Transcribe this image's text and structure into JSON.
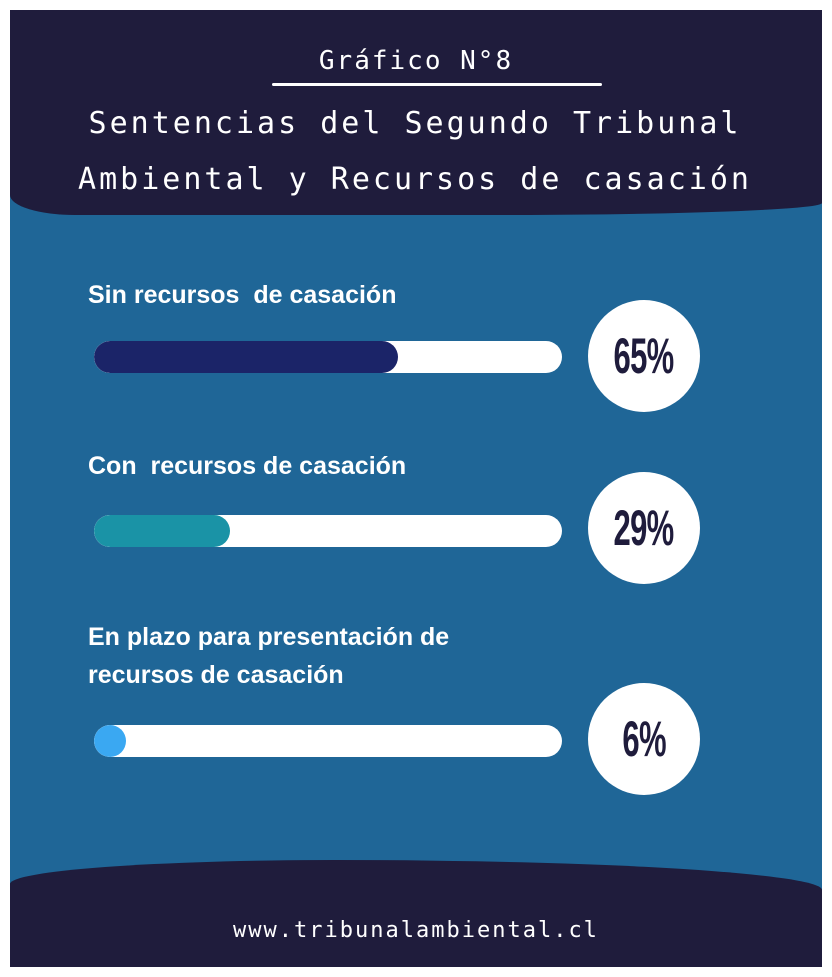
{
  "chart_data": {
    "type": "progress",
    "title": "Gráfico N°8",
    "subtitle": "Sentencias del Segundo Tribunal Ambiental y Recursos de casación",
    "categories": [
      "Sin recursos  de casación",
      "Con  recursos de casación",
      "En plazo para presentación de recursos de casación"
    ],
    "values": [
      65,
      29,
      6
    ],
    "value_labels": [
      "65%",
      "29%",
      "6%"
    ],
    "colors": [
      "#1b2468",
      "#1a93a6",
      "#3aa8f2"
    ],
    "xlim": [
      0,
      100
    ],
    "footer": "www.tribunalambiental.cl"
  }
}
